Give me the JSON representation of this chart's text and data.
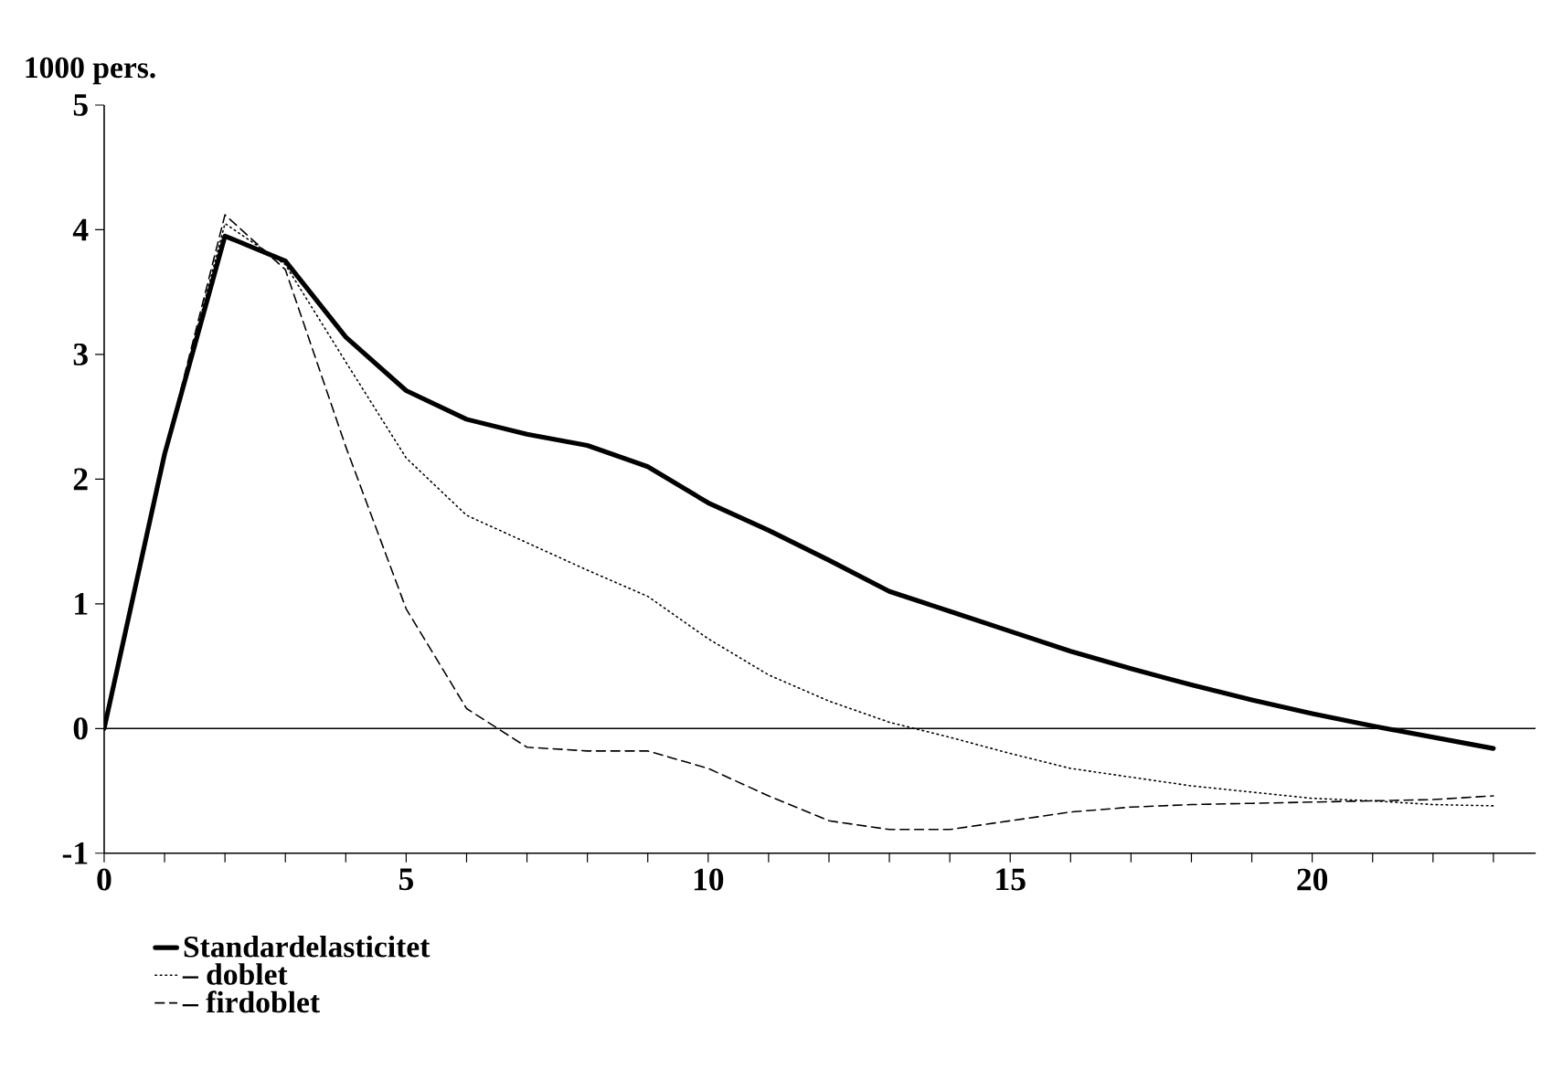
{
  "chart_data": {
    "type": "line",
    "ylabel": "1000 pers.",
    "x": [
      0,
      1,
      2,
      3,
      4,
      5,
      6,
      7,
      8,
      9,
      10,
      11,
      12,
      13,
      14,
      15,
      16,
      17,
      18,
      19,
      20,
      21,
      22,
      23
    ],
    "series": [
      {
        "name": "Standardelasticitet",
        "color": "#000000",
        "line_style": "solid",
        "values": [
          0,
          2.2,
          3.95,
          3.75,
          3.14,
          2.71,
          2.48,
          2.36,
          2.27,
          2.1,
          1.81,
          1.59,
          1.35,
          1.1,
          0.94,
          0.78,
          0.62,
          0.48,
          0.35,
          0.23,
          0.12,
          0.02,
          -0.07,
          -0.16
        ]
      },
      {
        "name": "– doblet",
        "color": "#000000",
        "line_style": "dotted",
        "values": [
          0,
          2.2,
          4.05,
          3.72,
          2.94,
          2.17,
          1.71,
          1.49,
          1.27,
          1.06,
          0.72,
          0.43,
          0.22,
          0.05,
          -0.07,
          -0.2,
          -0.32,
          -0.39,
          -0.46,
          -0.51,
          -0.56,
          -0.58,
          -0.61,
          -0.62
        ]
      },
      {
        "name": "– firdoblet",
        "color": "#000000",
        "line_style": "dashed",
        "values": [
          0,
          2.2,
          4.12,
          3.68,
          2.26,
          0.96,
          0.16,
          -0.15,
          -0.18,
          -0.18,
          -0.32,
          -0.54,
          -0.74,
          -0.81,
          -0.81,
          -0.74,
          -0.67,
          -0.63,
          -0.61,
          -0.6,
          -0.59,
          -0.58,
          -0.57,
          -0.54
        ]
      }
    ],
    "xlim": [
      0,
      23.7
    ],
    "ylim": [
      -1,
      5
    ],
    "xticks": [
      0,
      {
        "value": 1,
        "label": null
      },
      {
        "value": 2,
        "label": null
      },
      {
        "value": 3,
        "label": null
      },
      {
        "value": 4,
        "label": null
      },
      5,
      {
        "value": 6,
        "label": null
      },
      {
        "value": 7,
        "label": null
      },
      {
        "value": 8,
        "label": null
      },
      {
        "value": 9,
        "label": null
      },
      10,
      {
        "value": 11,
        "label": null
      },
      {
        "value": 12,
        "label": null
      },
      {
        "value": 13,
        "label": null
      },
      {
        "value": 14,
        "label": null
      },
      15,
      {
        "value": 16,
        "label": null
      },
      {
        "value": 17,
        "label": null
      },
      {
        "value": 18,
        "label": null
      },
      {
        "value": 19,
        "label": null
      },
      20,
      {
        "value": 21,
        "label": null
      },
      {
        "value": 22,
        "label": null
      },
      {
        "value": 23,
        "label": null
      }
    ],
    "yticks": [
      -1,
      0,
      1,
      2,
      3,
      4,
      5
    ],
    "ref_lines": [
      {
        "axis": "y",
        "value": 0
      }
    ],
    "legend": "bottom left",
    "grid": false,
    "marker": "none"
  }
}
